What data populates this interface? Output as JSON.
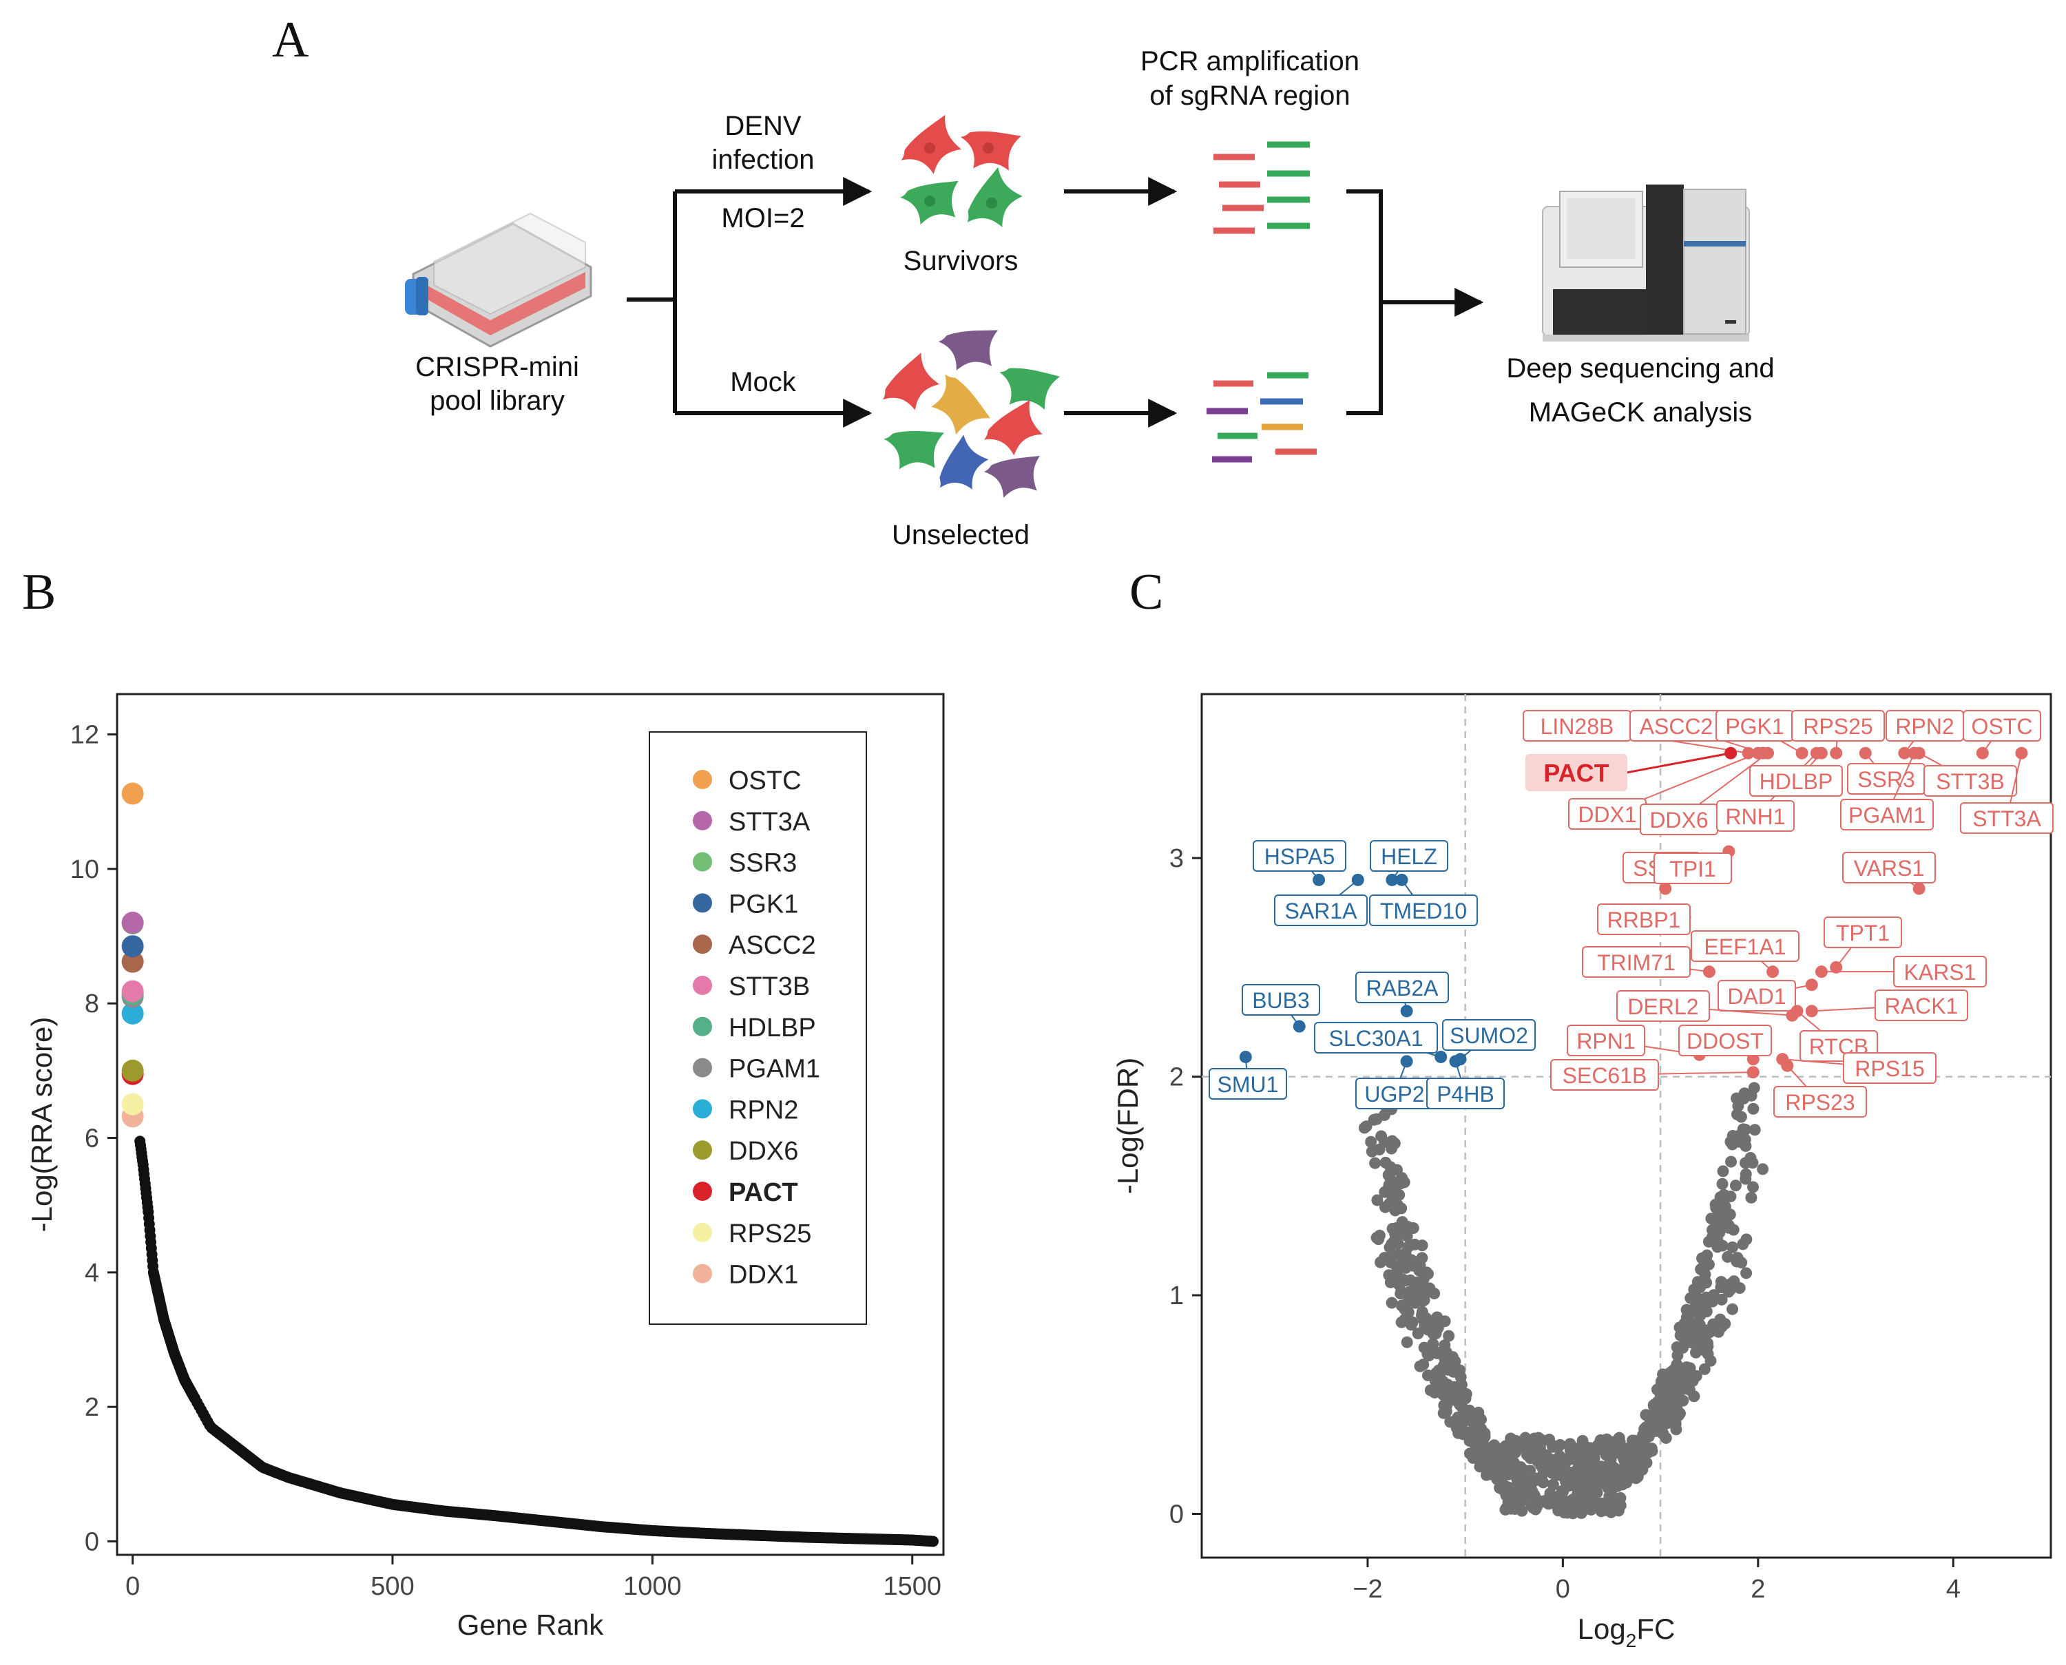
{
  "panels": {
    "a": "A",
    "b": "B",
    "c": "C"
  },
  "workflow": {
    "library_label_1": "CRISPR-mini",
    "library_label_2": "pool library",
    "infection_label_1": "DENV",
    "infection_label_2": "infection",
    "moi_label": "MOI=2",
    "mock_label": "Mock",
    "survivors_label": "Survivors",
    "unselected_label": "Unselected",
    "pcr_label_1": "PCR amplification",
    "pcr_label_2": "of sgRNA region",
    "sequencing_label_1": "Deep sequencing and",
    "sequencing_label_2": "MAGeCK analysis"
  },
  "colors": {
    "black": "#111111",
    "grey_points": "#707070",
    "blue": "#2a6a9e",
    "red": "#e06b66",
    "pact_red": "#d8232a",
    "guide_red": "#e05a5a",
    "guide_green": "#36a85a",
    "guide_blue": "#3b6db3",
    "guide_purple": "#7a3e92",
    "guide_yellow": "#e3a33a",
    "cell_red": "#e44c4c",
    "cell_green": "#3caa5a",
    "cell_purple": "#7b5a8a",
    "cell_yellow": "#e3ac45",
    "cell_blue": "#4266b4",
    "flask_liquid": "#e86a6a",
    "flask_cap": "#3a86d6"
  },
  "chart_data": [
    {
      "type": "scatter",
      "panel": "B",
      "xlabel": "Gene Rank",
      "ylabel": "-Log(RRA score)",
      "xlim": [
        -30,
        1560
      ],
      "ylim": [
        -0.2,
        12.6
      ],
      "xticks": [
        0,
        500,
        1000,
        1500
      ],
      "yticks": [
        0,
        2,
        4,
        6,
        8,
        10,
        12
      ],
      "grid": false,
      "legend_position": "top-right",
      "highlighted_genes": [
        {
          "name": "OSTC",
          "rank": 1,
          "value": 11.12,
          "color": "#f2a050",
          "bold": false
        },
        {
          "name": "STT3A",
          "rank": 2,
          "value": 9.2,
          "color": "#b467a9",
          "bold": false
        },
        {
          "name": "SSR3",
          "rank": 3,
          "value": 9.19,
          "color": "#72be75",
          "bold": false
        },
        {
          "name": "PGK1",
          "rank": 4,
          "value": 8.85,
          "color": "#3566a0",
          "bold": false
        },
        {
          "name": "ASCC2",
          "rank": 5,
          "value": 8.62,
          "color": "#a8664a",
          "bold": false
        },
        {
          "name": "STT3B",
          "rank": 6,
          "value": 8.18,
          "color": "#e37aa9",
          "bold": false
        },
        {
          "name": "HDLBP",
          "rank": 7,
          "value": 8.14,
          "color": "#55b089",
          "bold": false
        },
        {
          "name": "PGAM1",
          "rank": 8,
          "value": 8.1,
          "color": "#8a8a8a",
          "bold": false
        },
        {
          "name": "RPN2",
          "rank": 9,
          "value": 7.85,
          "color": "#2aaed8",
          "bold": false
        },
        {
          "name": "DDX6",
          "rank": 10,
          "value": 7.0,
          "color": "#9c9a2c",
          "bold": false
        },
        {
          "name": "PACT",
          "rank": 11,
          "value": 6.95,
          "color": "#d8232a",
          "bold": true
        },
        {
          "name": "RPS25",
          "rank": 12,
          "value": 6.5,
          "color": "#f6f1a2",
          "bold": false
        },
        {
          "name": "DDX1",
          "rank": 13,
          "value": 6.32,
          "color": "#f0b39a",
          "bold": false
        }
      ],
      "curve_points": [
        [
          14,
          5.95
        ],
        [
          20,
          5.6
        ],
        [
          30,
          4.9
        ],
        [
          40,
          4.0
        ],
        [
          60,
          3.3
        ],
        [
          80,
          2.8
        ],
        [
          100,
          2.4
        ],
        [
          150,
          1.7
        ],
        [
          200,
          1.4
        ],
        [
          250,
          1.1
        ],
        [
          300,
          0.95
        ],
        [
          400,
          0.72
        ],
        [
          500,
          0.55
        ],
        [
          600,
          0.45
        ],
        [
          700,
          0.38
        ],
        [
          800,
          0.3
        ],
        [
          900,
          0.22
        ],
        [
          1000,
          0.16
        ],
        [
          1100,
          0.12
        ],
        [
          1200,
          0.09
        ],
        [
          1300,
          0.06
        ],
        [
          1400,
          0.04
        ],
        [
          1500,
          0.02
        ],
        [
          1540,
          0.0
        ]
      ]
    },
    {
      "type": "scatter",
      "panel": "C",
      "xlabel_main": "Log",
      "xlabel_sub": "2",
      "xlabel_tail": "FC",
      "ylabel": "-Log(FDR)",
      "xlim": [
        -3.7,
        5.0
      ],
      "ylim": [
        -0.2,
        3.75
      ],
      "xticks": [
        -2,
        0,
        2,
        4
      ],
      "xtick_labels": [
        "−2",
        "0",
        "2",
        "4"
      ],
      "yticks": [
        0,
        1,
        2,
        3
      ],
      "threshold_x": [
        -1,
        1
      ],
      "threshold_y": 2,
      "grid": false,
      "down_genes": [
        {
          "name": "HSPA5",
          "x": -2.5,
          "y": 2.9
        },
        {
          "name": "SAR1A",
          "x": -2.1,
          "y": 2.9
        },
        {
          "name": "HELZ",
          "x": -1.75,
          "y": 2.9
        },
        {
          "name": "TMED10",
          "x": -1.65,
          "y": 2.9
        },
        {
          "name": "BUB3",
          "x": -2.7,
          "y": 2.23
        },
        {
          "name": "RAB2A",
          "x": -1.6,
          "y": 2.3
        },
        {
          "name": "SMU1",
          "x": -3.25,
          "y": 2.09
        },
        {
          "name": "SLC30A1",
          "x": -1.25,
          "y": 2.09
        },
        {
          "name": "SUMO2",
          "x": -1.05,
          "y": 2.08
        },
        {
          "name": "UGP2",
          "x": -1.6,
          "y": 2.07
        },
        {
          "name": "P4HB",
          "x": -1.1,
          "y": 2.07
        }
      ],
      "up_genes": [
        {
          "name": "LIN28B",
          "x": 1.9,
          "y": 3.48
        },
        {
          "name": "ASCC2",
          "x": 2.05,
          "y": 3.48
        },
        {
          "name": "PGK1",
          "x": 2.45,
          "y": 3.48
        },
        {
          "name": "RPS25",
          "x": 2.8,
          "y": 3.48
        },
        {
          "name": "RPN2",
          "x": 3.5,
          "y": 3.48
        },
        {
          "name": "OSTC",
          "x": 4.3,
          "y": 3.48
        },
        {
          "name": "DDX1",
          "x": 2.0,
          "y": 3.48
        },
        {
          "name": "DDX6",
          "x": 2.1,
          "y": 3.48
        },
        {
          "name": "RNH1",
          "x": 2.6,
          "y": 3.48
        },
        {
          "name": "HDLBP",
          "x": 2.65,
          "y": 3.48
        },
        {
          "name": "SSR3",
          "x": 3.1,
          "y": 3.48
        },
        {
          "name": "PGAM1",
          "x": 3.6,
          "y": 3.48
        },
        {
          "name": "STT3B",
          "x": 3.65,
          "y": 3.48
        },
        {
          "name": "STT3A",
          "x": 4.7,
          "y": 3.48
        },
        {
          "name": "SSR4",
          "x": 1.05,
          "y": 2.86
        },
        {
          "name": "TPI1",
          "x": 1.7,
          "y": 3.03
        },
        {
          "name": "VARS1",
          "x": 3.65,
          "y": 2.86
        },
        {
          "name": "RRBP1",
          "x": 1.25,
          "y": 2.73
        },
        {
          "name": "TPT1",
          "x": 2.8,
          "y": 2.5
        },
        {
          "name": "TRIM71",
          "x": 1.5,
          "y": 2.48
        },
        {
          "name": "EEF1A1",
          "x": 2.15,
          "y": 2.48
        },
        {
          "name": "KARS1",
          "x": 2.65,
          "y": 2.48
        },
        {
          "name": "DAD1",
          "x": 2.55,
          "y": 2.42
        },
        {
          "name": "RACK1",
          "x": 2.55,
          "y": 2.3
        },
        {
          "name": "DERL2",
          "x": 2.35,
          "y": 2.28
        },
        {
          "name": "RTCB",
          "x": 2.4,
          "y": 2.3
        },
        {
          "name": "RPN1",
          "x": 1.4,
          "y": 2.1
        },
        {
          "name": "DDOST",
          "x": 1.95,
          "y": 2.08
        },
        {
          "name": "RPS15",
          "x": 2.25,
          "y": 2.08
        },
        {
          "name": "SEC61B",
          "x": 1.95,
          "y": 2.02
        },
        {
          "name": "RPS23",
          "x": 2.3,
          "y": 2.05
        }
      ],
      "highlight_gene": {
        "name": "PACT",
        "x": 1.72,
        "y": 3.48
      }
    }
  ]
}
